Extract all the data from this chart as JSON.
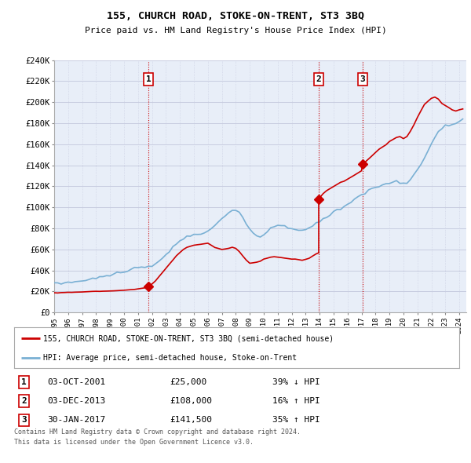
{
  "title": "155, CHURCH ROAD, STOKE-ON-TRENT, ST3 3BQ",
  "subtitle": "Price paid vs. HM Land Registry's House Price Index (HPI)",
  "ylabel_ticks": [
    "£0",
    "£20K",
    "£40K",
    "£60K",
    "£80K",
    "£100K",
    "£120K",
    "£140K",
    "£160K",
    "£180K",
    "£200K",
    "£220K",
    "£240K"
  ],
  "ylim": [
    0,
    240000
  ],
  "yticks": [
    0,
    20000,
    40000,
    60000,
    80000,
    100000,
    120000,
    140000,
    160000,
    180000,
    200000,
    220000,
    240000
  ],
  "xlim_start": 1995.0,
  "xlim_end": 2024.5,
  "sale_dates": [
    2001.75,
    2013.92,
    2017.08
  ],
  "sale_prices": [
    25000,
    108000,
    141500
  ],
  "sale_labels": [
    "1",
    "2",
    "3"
  ],
  "legend_red": "155, CHURCH ROAD, STOKE-ON-TRENT, ST3 3BQ (semi-detached house)",
  "legend_blue": "HPI: Average price, semi-detached house, Stoke-on-Trent",
  "table_rows": [
    [
      "1",
      "03-OCT-2001",
      "£25,000",
      "39% ↓ HPI"
    ],
    [
      "2",
      "03-DEC-2013",
      "£108,000",
      "16% ↑ HPI"
    ],
    [
      "3",
      "30-JAN-2017",
      "£141,500",
      "35% ↑ HPI"
    ]
  ],
  "footnote1": "Contains HM Land Registry data © Crown copyright and database right 2024.",
  "footnote2": "This data is licensed under the Open Government Licence v3.0.",
  "red_color": "#cc0000",
  "blue_color": "#7ab0d4",
  "background_color": "#e8eef8",
  "grid_color": "#c8cce0",
  "hpi_years": [
    1995.0,
    1995.25,
    1995.5,
    1995.75,
    1996.0,
    1996.25,
    1996.5,
    1996.75,
    1997.0,
    1997.25,
    1997.5,
    1997.75,
    1998.0,
    1998.25,
    1998.5,
    1998.75,
    1999.0,
    1999.25,
    1999.5,
    1999.75,
    2000.0,
    2000.25,
    2000.5,
    2000.75,
    2001.0,
    2001.25,
    2001.5,
    2001.75,
    2002.0,
    2002.25,
    2002.5,
    2002.75,
    2003.0,
    2003.25,
    2003.5,
    2003.75,
    2004.0,
    2004.25,
    2004.5,
    2004.75,
    2005.0,
    2005.25,
    2005.5,
    2005.75,
    2006.0,
    2006.25,
    2006.5,
    2006.75,
    2007.0,
    2007.25,
    2007.5,
    2007.75,
    2008.0,
    2008.25,
    2008.5,
    2008.75,
    2009.0,
    2009.25,
    2009.5,
    2009.75,
    2010.0,
    2010.25,
    2010.5,
    2010.75,
    2011.0,
    2011.25,
    2011.5,
    2011.75,
    2012.0,
    2012.25,
    2012.5,
    2012.75,
    2013.0,
    2013.25,
    2013.5,
    2013.75,
    2014.0,
    2014.25,
    2014.5,
    2014.75,
    2015.0,
    2015.25,
    2015.5,
    2015.75,
    2016.0,
    2016.25,
    2016.5,
    2016.75,
    2017.0,
    2017.25,
    2017.5,
    2017.75,
    2018.0,
    2018.25,
    2018.5,
    2018.75,
    2019.0,
    2019.25,
    2019.5,
    2019.75,
    2020.0,
    2020.25,
    2020.5,
    2020.75,
    2021.0,
    2021.25,
    2021.5,
    2021.75,
    2022.0,
    2022.25,
    2022.5,
    2022.75,
    2023.0,
    2023.25,
    2023.5,
    2023.75,
    2024.0,
    2024.25
  ],
  "hpi_vals": [
    27500,
    27800,
    28000,
    28300,
    28600,
    28900,
    29200,
    29600,
    30000,
    30500,
    31200,
    32000,
    32800,
    33500,
    34000,
    34800,
    35500,
    36500,
    37500,
    38500,
    39500,
    40200,
    41000,
    41500,
    42000,
    42300,
    42800,
    43200,
    44000,
    46000,
    49000,
    52000,
    55000,
    58000,
    62000,
    65000,
    68000,
    70000,
    72000,
    73000,
    74000,
    74500,
    75000,
    76000,
    78000,
    80000,
    83000,
    86000,
    89000,
    92000,
    95000,
    97000,
    97500,
    95000,
    90000,
    84000,
    78000,
    75000,
    73000,
    72000,
    74000,
    77000,
    80000,
    82000,
    83000,
    83000,
    82000,
    81000,
    80000,
    79000,
    78000,
    78000,
    79000,
    80000,
    82000,
    84000,
    87000,
    89000,
    91000,
    93000,
    95000,
    97000,
    99000,
    101000,
    103000,
    106000,
    108000,
    110000,
    112000,
    114000,
    116000,
    118000,
    119000,
    120000,
    121000,
    122000,
    123000,
    124000,
    125000,
    124000,
    123000,
    124000,
    127000,
    131000,
    136000,
    141000,
    147000,
    153000,
    160000,
    167000,
    172000,
    175000,
    177000,
    178000,
    179000,
    180000,
    182000,
    184000
  ],
  "red_seg1_years": [
    1995.0,
    1995.25,
    1995.5,
    1995.75,
    1996.0,
    1996.25,
    1996.5,
    1996.75,
    1997.0,
    1997.25,
    1997.5,
    1997.75,
    1998.0,
    1998.25,
    1998.5,
    1998.75,
    1999.0,
    1999.25,
    1999.5,
    1999.75,
    2000.0,
    2000.25,
    2000.5,
    2000.75,
    2001.0,
    2001.25,
    2001.5,
    2001.75
  ],
  "red_seg1_vals": [
    18800,
    18600,
    18900,
    19000,
    19200,
    19100,
    19300,
    19400,
    19500,
    19700,
    19900,
    20100,
    20200,
    20100,
    20300,
    20400,
    20500,
    20600,
    20800,
    21000,
    21200,
    21500,
    21800,
    22000,
    22500,
    23000,
    23500,
    25000
  ],
  "red_seg2_years": [
    2001.75,
    2002.0,
    2002.25,
    2002.5,
    2002.75,
    2003.0,
    2003.25,
    2003.5,
    2003.75,
    2004.0,
    2004.25,
    2004.5,
    2004.75,
    2005.0,
    2005.25,
    2005.5,
    2005.75,
    2006.0,
    2006.25,
    2006.5,
    2006.75,
    2007.0,
    2007.25,
    2007.5,
    2007.75,
    2008.0,
    2008.25,
    2008.5,
    2008.75,
    2009.0,
    2009.25,
    2009.5,
    2009.75,
    2010.0,
    2010.25,
    2010.5,
    2010.75,
    2011.0,
    2011.25,
    2011.5,
    2011.75,
    2012.0,
    2012.25,
    2012.5,
    2012.75,
    2013.0,
    2013.25,
    2013.5,
    2013.75,
    2013.92
  ],
  "red_seg2_vals": [
    25000,
    27000,
    30000,
    34000,
    38000,
    42000,
    46000,
    50000,
    54000,
    57000,
    60000,
    62000,
    63000,
    64000,
    64500,
    65000,
    65500,
    66000,
    64000,
    62000,
    61000,
    60000,
    60500,
    61000,
    62000,
    61000,
    58000,
    54000,
    50000,
    47000,
    47500,
    48000,
    49000,
    51000,
    52000,
    53000,
    53500,
    53000,
    52500,
    52000,
    51500,
    51000,
    51000,
    50500,
    50000,
    51000,
    52000,
    54000,
    56000,
    57000
  ],
  "red_seg2_jump_from": 57000,
  "red_seg3_years": [
    2013.92,
    2014.0,
    2014.25,
    2014.5,
    2014.75,
    2015.0,
    2015.25,
    2015.5,
    2015.75,
    2016.0,
    2016.25,
    2016.5,
    2016.75,
    2017.0,
    2017.08
  ],
  "red_seg3_vals": [
    108000,
    109000,
    113000,
    116000,
    118000,
    120000,
    122000,
    124000,
    125000,
    127000,
    129000,
    131000,
    133000,
    135000,
    141500
  ],
  "red_seg3_jump_from": 57000,
  "red_seg4_years": [
    2017.08,
    2017.25,
    2017.5,
    2017.75,
    2018.0,
    2018.25,
    2018.5,
    2018.75,
    2019.0,
    2019.25,
    2019.5,
    2019.75,
    2020.0,
    2020.25,
    2020.5,
    2020.75,
    2021.0,
    2021.25,
    2021.5,
    2021.75,
    2022.0,
    2022.25,
    2022.5,
    2022.75,
    2023.0,
    2023.25,
    2023.5,
    2023.75,
    2024.0,
    2024.25
  ],
  "red_seg4_vals": [
    141500,
    143000,
    146000,
    149000,
    152000,
    155000,
    157000,
    159000,
    162000,
    164000,
    166000,
    167000,
    165000,
    167000,
    172000,
    178000,
    185000,
    191000,
    197000,
    200000,
    203000,
    204000,
    202000,
    198000,
    196000,
    194000,
    192000,
    191000,
    192000,
    193000
  ]
}
